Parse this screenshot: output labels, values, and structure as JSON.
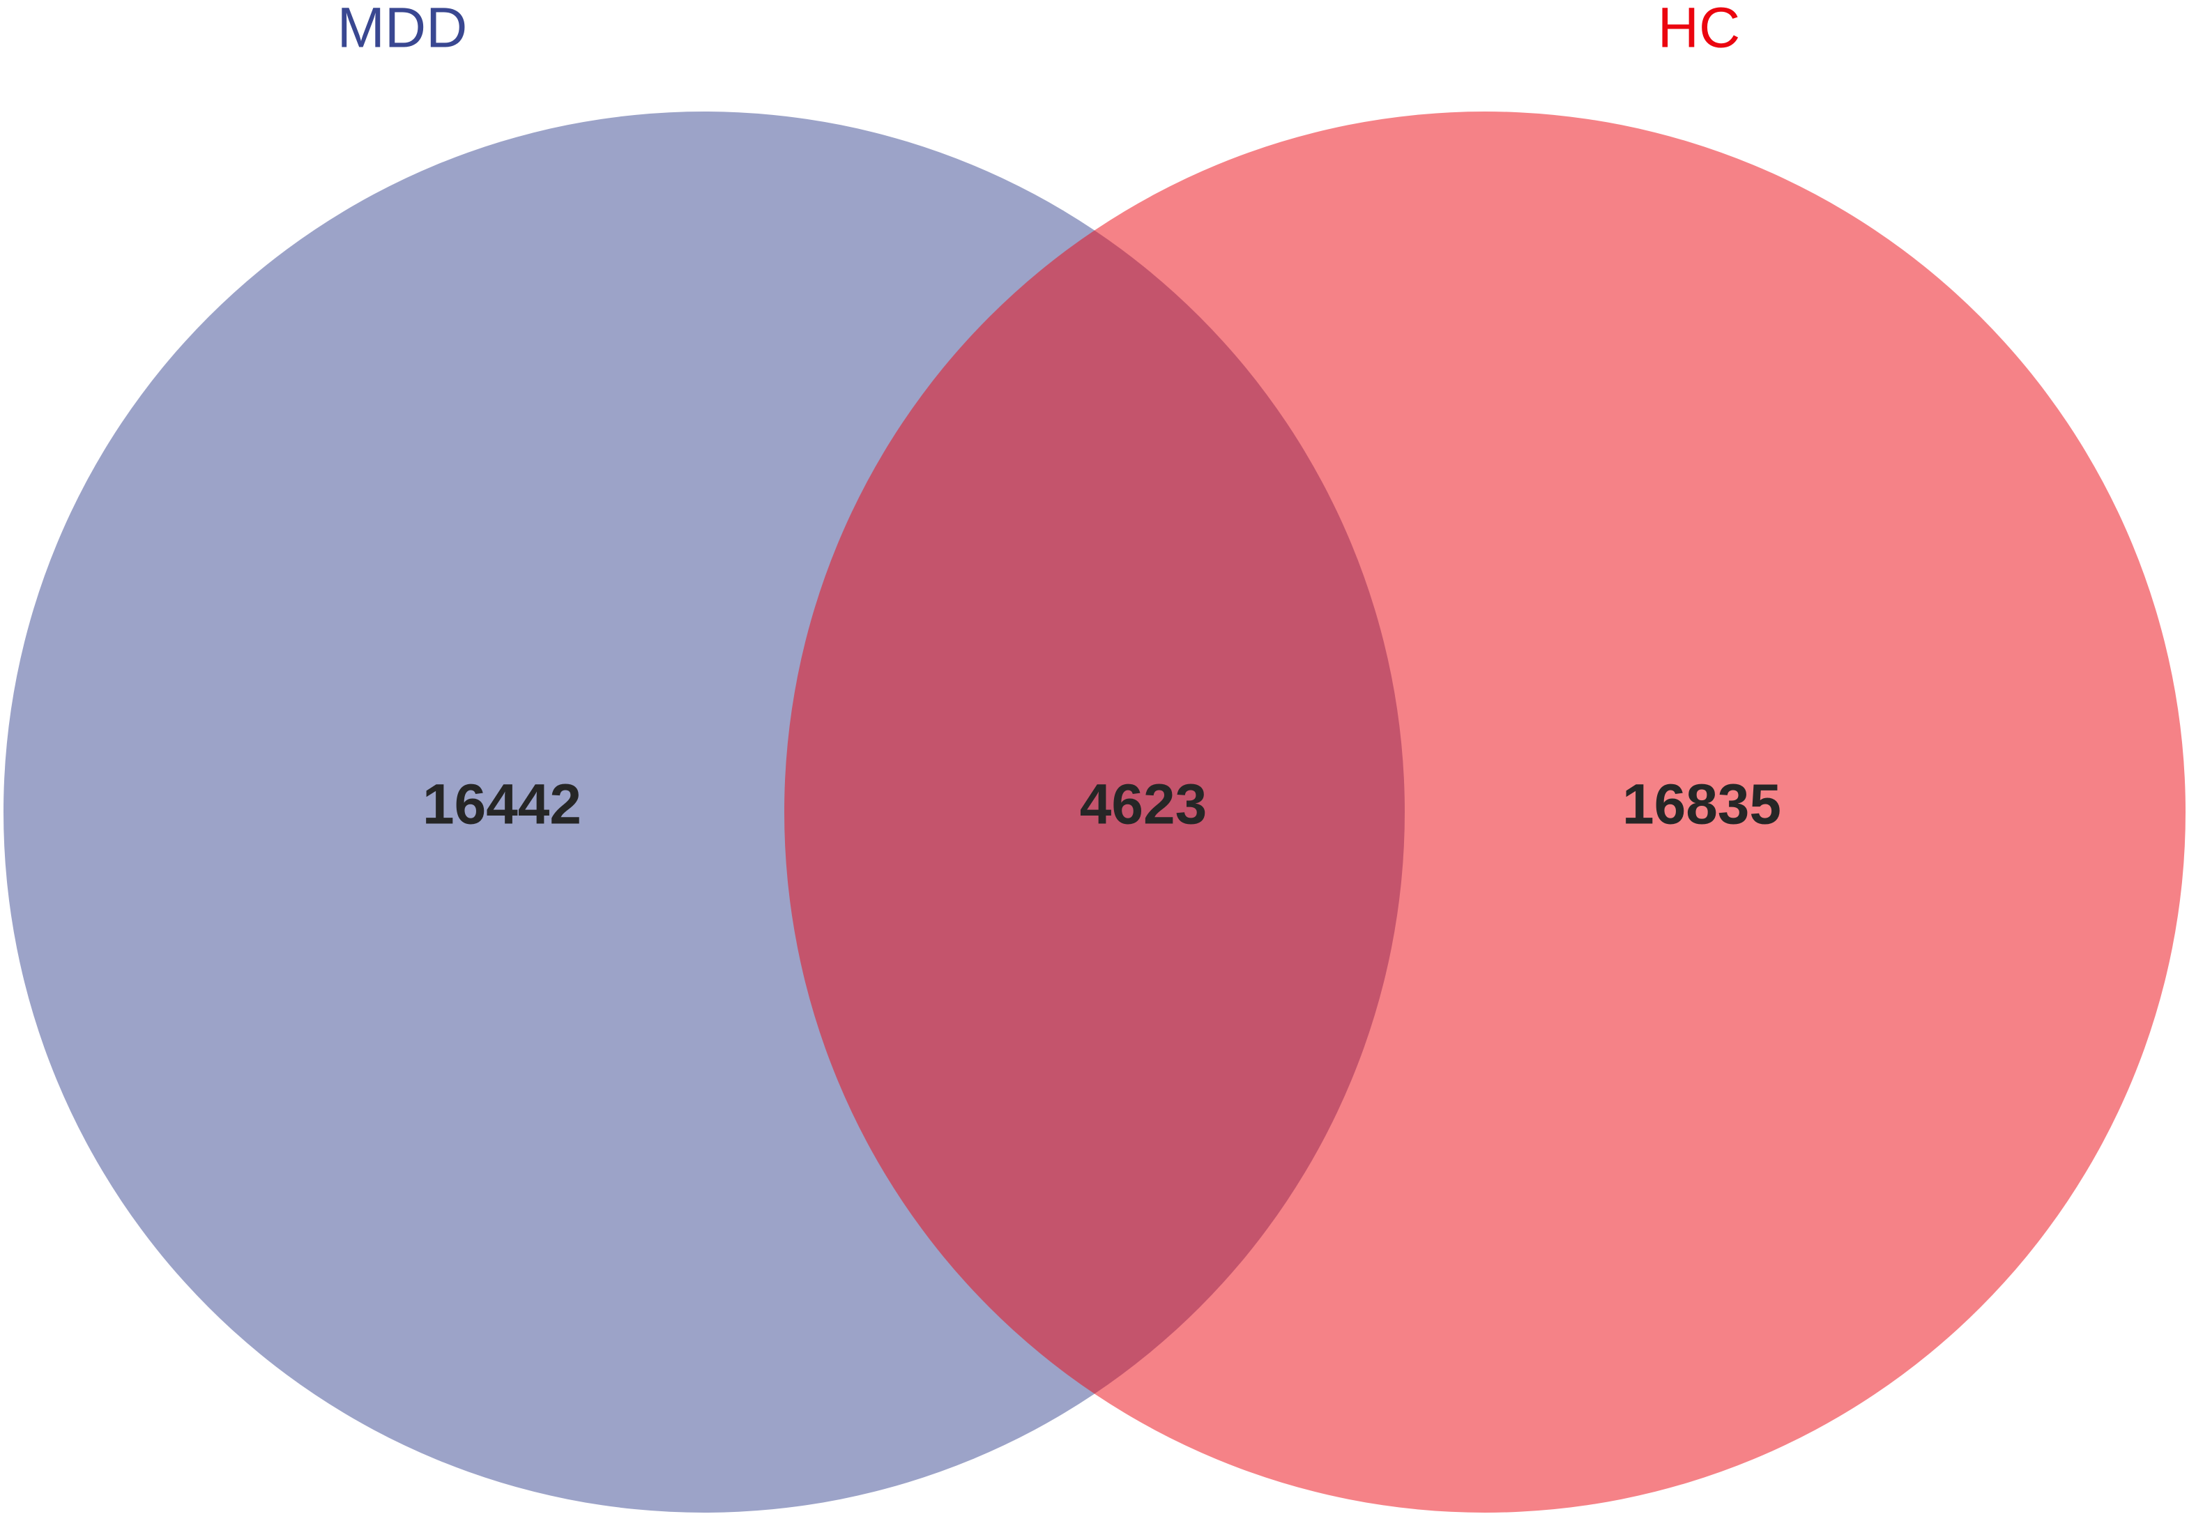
{
  "chart_data": {
    "type": "venn",
    "sets": [
      {
        "name": "MDD",
        "color": "#394791"
      },
      {
        "name": "HC",
        "color": "#eb050f"
      }
    ],
    "values": [
      16442,
      4623,
      16835
    ],
    "opacity": 0.5
  }
}
